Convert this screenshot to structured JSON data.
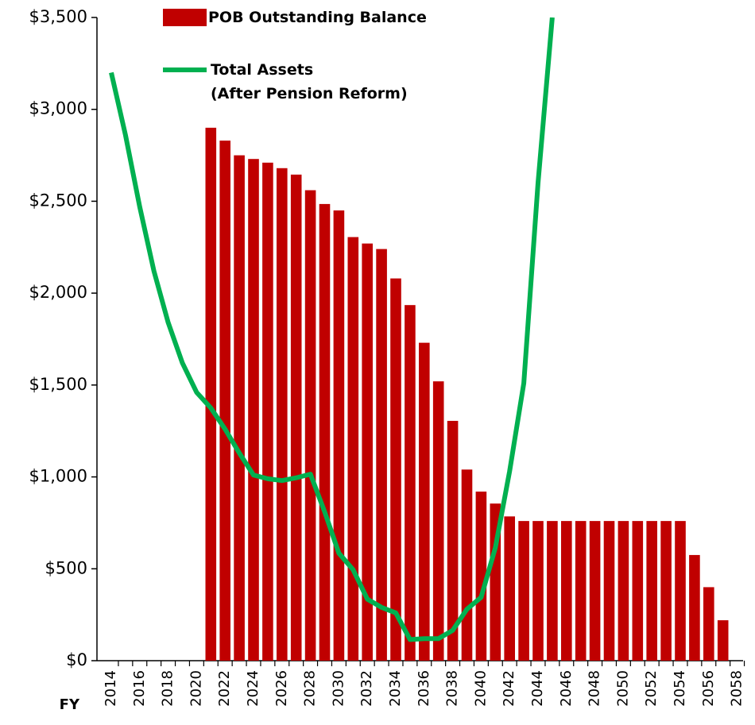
{
  "chart_data": {
    "type": "bar_line",
    "x_label": "FY",
    "categories": [
      "2014",
      null,
      "2016",
      null,
      "2018",
      null,
      "2020",
      null,
      "2022",
      null,
      "2024",
      null,
      "2026",
      null,
      "2028",
      null,
      "2030",
      null,
      "2032",
      null,
      "2034",
      null,
      "2036",
      null,
      "2038",
      null,
      "2040",
      null,
      "2042",
      null,
      "2044",
      null,
      "2046",
      null,
      "2048",
      null,
      "2050",
      null,
      "2052",
      null,
      "2054",
      null,
      "2056",
      null,
      "2058"
    ],
    "series": [
      {
        "name": "POB Outstanding Balance",
        "type": "bar",
        "color": "#c00000",
        "values": [
          null,
          null,
          null,
          null,
          null,
          null,
          null,
          2900,
          2830,
          2750,
          2730,
          2710,
          2680,
          2645,
          2560,
          2485,
          2450,
          2305,
          2270,
          2240,
          2080,
          1935,
          1730,
          1520,
          1305,
          1040,
          920,
          855,
          785,
          760,
          760,
          760,
          760,
          760,
          760,
          760,
          760,
          760,
          760,
          760,
          760,
          575,
          400,
          220,
          null
        ]
      },
      {
        "name": "Total Assets\n(After Pension Reform)",
        "type": "line",
        "color": "#00b050",
        "values": [
          3200,
          2860,
          2470,
          2120,
          1840,
          1620,
          1460,
          1375,
          1260,
          1130,
          1010,
          990,
          980,
          995,
          1015,
          810,
          585,
          495,
          335,
          290,
          260,
          115,
          120,
          120,
          165,
          280,
          345,
          615,
          1030,
          1510,
          2600,
          3500,
          null,
          null,
          null,
          null,
          null,
          null,
          null,
          null,
          null,
          null,
          null,
          null,
          null
        ]
      }
    ],
    "ylim": [
      0,
      3500
    ],
    "yticks": [
      {
        "value": 0,
        "label": "$0"
      },
      {
        "value": 500,
        "label": "$500"
      },
      {
        "value": 1000,
        "label": "$1,000"
      },
      {
        "value": 1500,
        "label": "$1,500"
      },
      {
        "value": 2000,
        "label": "$2,000"
      },
      {
        "value": 2500,
        "label": "$2,500"
      },
      {
        "value": 3000,
        "label": "$3,000"
      },
      {
        "value": 3500,
        "label": "$3,500"
      }
    ]
  }
}
